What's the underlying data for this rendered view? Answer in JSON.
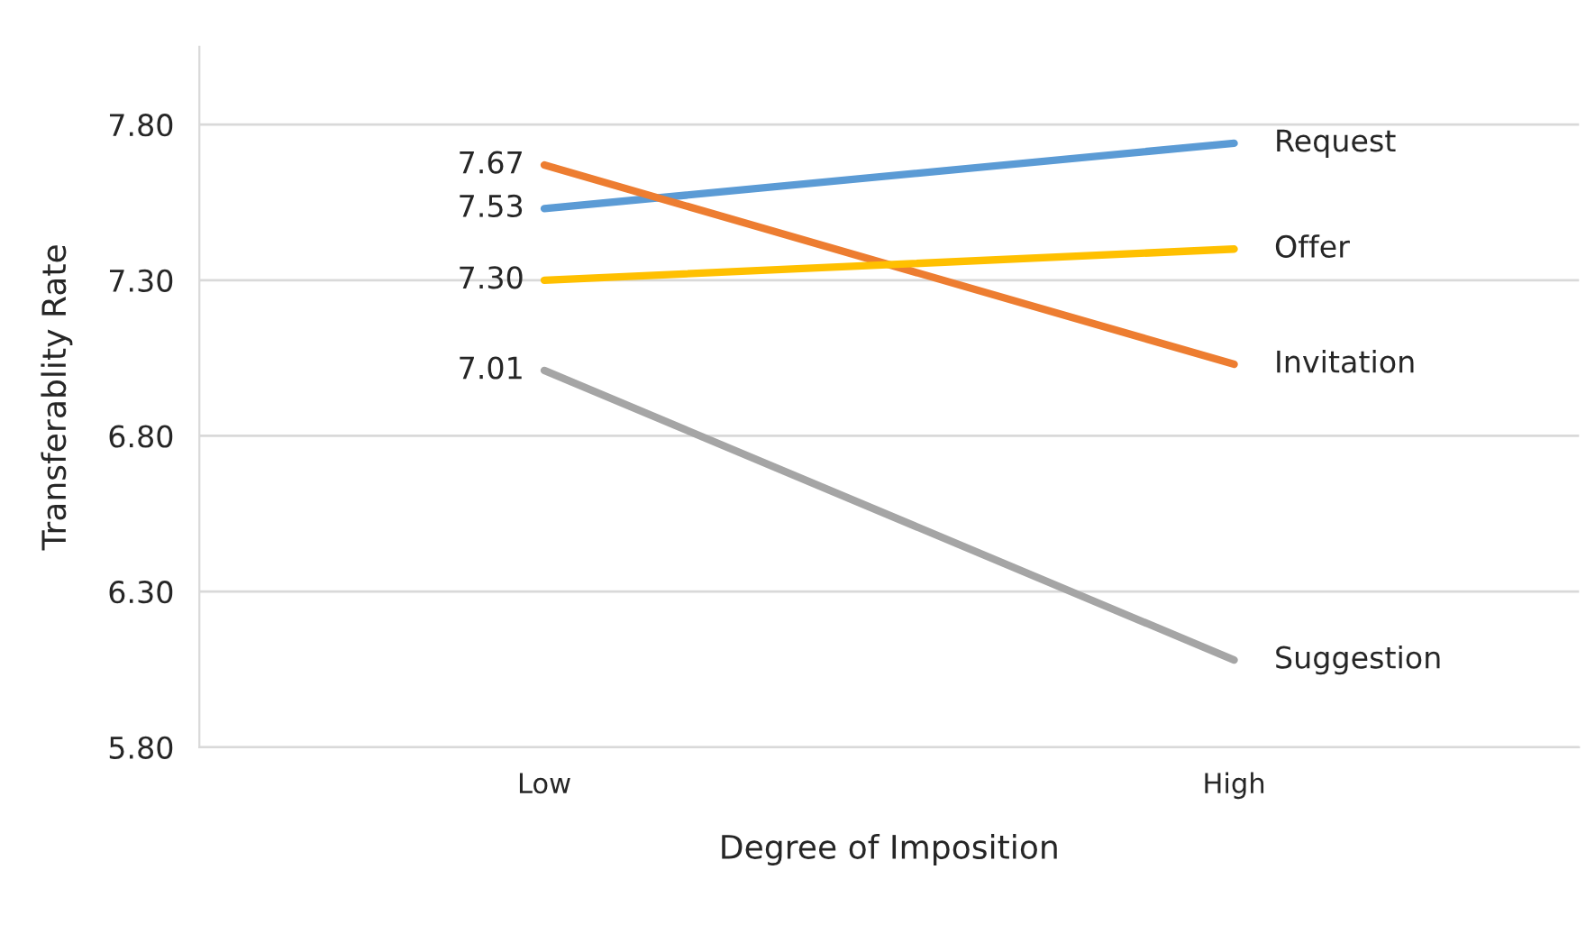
{
  "chart_data": {
    "type": "line",
    "xlabel": "Degree of Imposition",
    "ylabel": "Transferablity Rate",
    "categories": [
      "Low",
      "High"
    ],
    "series": [
      {
        "name": "Request",
        "color": "#5b9bd5",
        "values": [
          7.53,
          7.74
        ],
        "value_labels": [
          "7.53",
          null
        ]
      },
      {
        "name": "Invitation",
        "color": "#ed7d31",
        "values": [
          7.67,
          7.03
        ],
        "value_labels": [
          "7.67",
          null
        ]
      },
      {
        "name": "Suggestion",
        "color": "#a5a5a5",
        "values": [
          7.01,
          6.08
        ],
        "value_labels": [
          "7.01",
          null
        ]
      },
      {
        "name": "Offer",
        "color": "#ffc000",
        "values": [
          7.3,
          7.4
        ],
        "value_labels": [
          "7.30",
          null
        ]
      }
    ],
    "ylim": [
      5.8,
      8.05
    ],
    "yticks": [
      {
        "value": 5.8,
        "label": "5.80"
      },
      {
        "value": 6.3,
        "label": "6.30"
      },
      {
        "value": 6.8,
        "label": "6.80"
      },
      {
        "value": 7.3,
        "label": "7.30"
      },
      {
        "value": 7.8,
        "label": "7.80"
      }
    ],
    "grid": "y",
    "marker": "none",
    "line_style": "solid",
    "legend": false
  }
}
